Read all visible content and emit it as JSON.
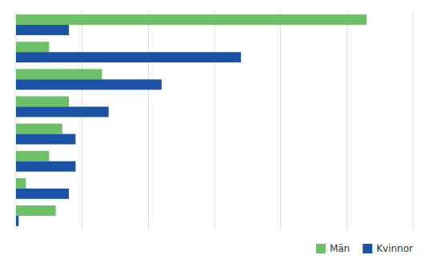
{
  "chart_data": {
    "type": "bar",
    "orientation": "horizontal",
    "categories": [
      null,
      null,
      null,
      null,
      null,
      null,
      null,
      null
    ],
    "series": [
      {
        "name": "Män",
        "color": "#6DC067",
        "values": [
          53000,
          5000,
          13000,
          8000,
          7000,
          5000,
          1500,
          6000
        ]
      },
      {
        "name": "Kvinnor",
        "color": "#1A52A5",
        "values": [
          8000,
          34000,
          22000,
          14000,
          9000,
          9000,
          8000,
          400
        ]
      }
    ],
    "xlim": [
      0,
      60000
    ],
    "xticks": [
      0,
      10000,
      20000,
      30000,
      40000,
      50000,
      60000
    ],
    "grid": true,
    "legend": "lower right",
    "tick_labels": false
  }
}
